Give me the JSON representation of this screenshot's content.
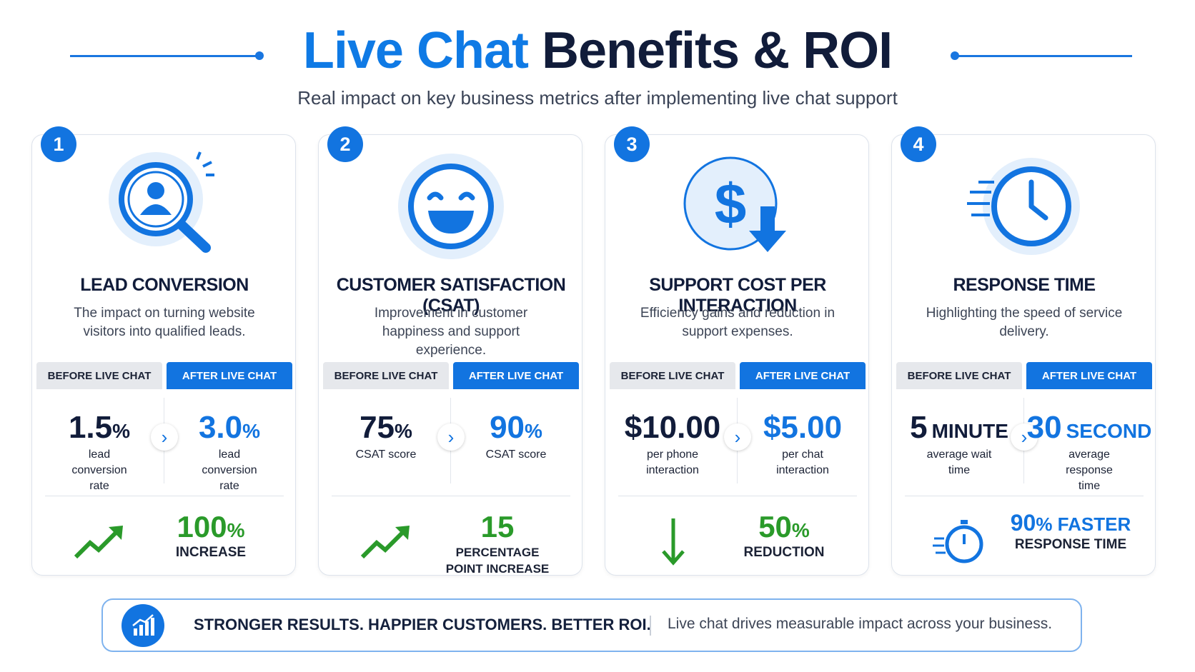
{
  "header": {
    "title_highlight": "Live Chat",
    "title_rest": "Benefits & ROI",
    "subtitle": "Real impact on key business metrics after implementing live chat support"
  },
  "cards": [
    {
      "number": "1",
      "title": "LEAD CONVERSION",
      "description": "The impact on turning website visitors into qualified leads.",
      "before_label": "BEFORE LIVE CHAT",
      "after_label": "AFTER LIVE CHAT",
      "before": {
        "value": "1.5",
        "unit": "%",
        "caption": "lead conversion rate"
      },
      "after": {
        "value": "3.0",
        "unit": "%",
        "caption": "lead conversion rate"
      },
      "result": {
        "value": "100",
        "unit": "%",
        "caption": "INCREASE"
      }
    },
    {
      "number": "2",
      "title": "CUSTOMER SATISFACTION (CSAT)",
      "description": "Improvement in customer happiness and support experience.",
      "before_label": "BEFORE LIVE CHAT",
      "after_label": "AFTER LIVE CHAT",
      "before": {
        "value": "75",
        "unit": "%",
        "caption": "CSAT score"
      },
      "after": {
        "value": "90",
        "unit": "%",
        "caption": "CSAT score"
      },
      "result": {
        "value": "15",
        "unit": "",
        "caption": "PERCENTAGE POINT INCREASE"
      }
    },
    {
      "number": "3",
      "title": "SUPPORT COST PER INTERACTION",
      "description": "Efficiency gains and reduction in support expenses.",
      "before_label": "BEFORE LIVE CHAT",
      "after_label": "AFTER LIVE CHAT",
      "before": {
        "value": "$10.00",
        "unit": "",
        "caption": "per phone interaction"
      },
      "after": {
        "value": "$5.00",
        "unit": "",
        "caption": "per chat interaction"
      },
      "result": {
        "value": "50",
        "unit": "%",
        "caption": "REDUCTION"
      }
    },
    {
      "number": "4",
      "title": "RESPONSE TIME",
      "description": "Highlighting the speed of service delivery.",
      "before_label": "BEFORE LIVE CHAT",
      "after_label": "AFTER LIVE CHAT",
      "before": {
        "value": "5",
        "unit": "MINUTE",
        "caption": "average wait time"
      },
      "after": {
        "value": "30",
        "unit": "SECOND",
        "caption": "average response time"
      },
      "result": {
        "value": "90",
        "unit": "% FASTER",
        "caption": "RESPONSE TIME"
      }
    }
  ],
  "footer": {
    "headline": "STRONGER RESULTS. HAPPIER CUSTOMERS. BETTER ROI.",
    "text": "Live chat drives measurable impact across your business."
  }
}
